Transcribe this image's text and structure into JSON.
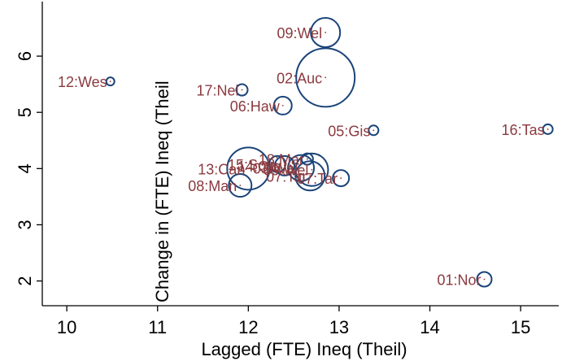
{
  "chart_data": {
    "type": "scatter",
    "title": "",
    "xlabel": "Lagged (FTE) Ineq (Theil)",
    "ylabel": "Change in (FTE) Ineq (Theil",
    "xlim": [
      9.73,
      15.42
    ],
    "ylim": [
      1.56,
      6.97
    ],
    "xticks": [
      10,
      11,
      12,
      13,
      14,
      15
    ],
    "yticks": [
      2,
      3,
      4,
      5,
      6
    ],
    "grid": false,
    "legend": "none",
    "colors": {
      "marker": "#1a4479",
      "label": "#8b3a3f",
      "axis": "#000000",
      "background": "#ffffff"
    },
    "points": [
      {
        "label": "01:Nor",
        "x": 14.6,
        "y": 2.03,
        "r": 9
      },
      {
        "label": "02:Auc",
        "x": 12.85,
        "y": 5.62,
        "r": 36
      },
      {
        "label": "03:Wai",
        "x": 12.58,
        "y": 4.01,
        "r": 16
      },
      {
        "label": "05:Gis",
        "x": 13.38,
        "y": 4.68,
        "r": 6
      },
      {
        "label": "06:Haw",
        "x": 12.38,
        "y": 5.12,
        "r": 11
      },
      {
        "label": "07:Tar",
        "x": 13.02,
        "y": 3.83,
        "r": 10
      },
      {
        "label": "08:Man",
        "x": 11.91,
        "y": 3.7,
        "r": 14
      },
      {
        "label": "09:Wel",
        "x": 12.85,
        "y": 6.42,
        "r": 18
      },
      {
        "label": "12:Wes",
        "x": 10.48,
        "y": 5.55,
        "r": 5
      },
      {
        "label": "13:Can",
        "x": 12.0,
        "y": 4.0,
        "r": 26
      },
      {
        "label": "14:Ota",
        "x": 12.4,
        "y": 4.05,
        "r": 12
      },
      {
        "label": "15:Sou",
        "x": 12.32,
        "y": 4.08,
        "r": 10
      },
      {
        "label": "16:Tas",
        "x": 15.3,
        "y": 4.7,
        "r": 6
      },
      {
        "label": "17:Nel",
        "x": 11.93,
        "y": 5.4,
        "r": 7
      },
      {
        "label": "18:Mar",
        "x": 12.65,
        "y": 4.17,
        "r": 7
      },
      {
        "label": "09:Wel",
        "x": 12.7,
        "y": 3.98,
        "r": 20
      },
      {
        "label": "07:Tar",
        "x": 12.68,
        "y": 3.87,
        "r": 18
      }
    ]
  }
}
